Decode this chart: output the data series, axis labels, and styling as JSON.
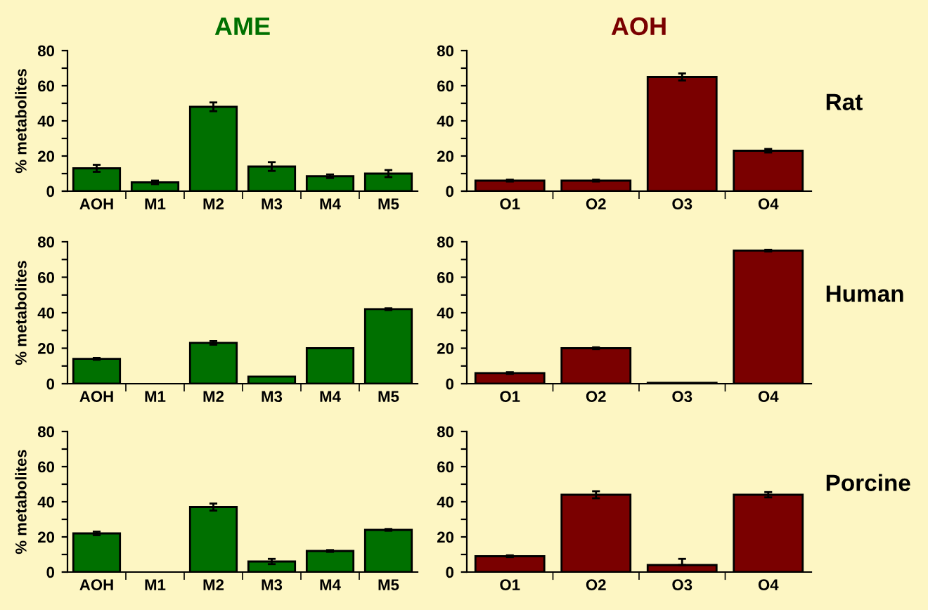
{
  "chart_data": [
    {
      "type": "bar",
      "title": "AME",
      "ylabel": "% metabolites",
      "categories": [
        "AOH",
        "M1",
        "M2",
        "M3",
        "M4",
        "M5"
      ],
      "series": [
        {
          "color": "#007000",
          "values": [
            13,
            5,
            48,
            14,
            8.5,
            10
          ],
          "errors": [
            2,
            1,
            2.5,
            2.5,
            1,
            2
          ]
        }
      ],
      "ylim": [
        0,
        80
      ],
      "yticks": [
        0,
        {
          "value": 10,
          "label": null
        },
        20,
        {
          "value": 30,
          "label": null
        },
        40,
        {
          "value": 50,
          "label": null
        },
        60,
        {
          "value": 70,
          "label": null
        },
        80
      ],
      "grid": false,
      "legend": false
    },
    {
      "type": "bar",
      "title": "AOH",
      "annotations": [
        "Rat"
      ],
      "categories": [
        "O1",
        "O2",
        "O3",
        "O4"
      ],
      "series": [
        {
          "color": "#7a0000",
          "values": [
            6,
            6,
            65,
            23
          ],
          "errors": [
            0.5,
            0.5,
            2,
            1
          ]
        }
      ],
      "ylim": [
        0,
        80
      ],
      "yticks": [
        0,
        {
          "value": 10,
          "label": null
        },
        20,
        {
          "value": 30,
          "label": null
        },
        40,
        {
          "value": 50,
          "label": null
        },
        60,
        {
          "value": 70,
          "label": null
        },
        80
      ],
      "grid": false,
      "legend": false
    },
    {
      "type": "bar",
      "ylabel": "% metabolites",
      "categories": [
        "AOH",
        "M1",
        "M2",
        "M3",
        "M4",
        "M5"
      ],
      "series": [
        {
          "color": "#007000",
          "values": [
            14,
            null,
            23,
            4,
            20,
            42
          ],
          "errors": [
            0.5,
            null,
            1,
            null,
            null,
            0.5
          ]
        }
      ],
      "ylim": [
        0,
        80
      ],
      "yticks": [
        0,
        {
          "value": 10,
          "label": null
        },
        20,
        {
          "value": 30,
          "label": null
        },
        40,
        {
          "value": 50,
          "label": null
        },
        60,
        {
          "value": 70,
          "label": null
        },
        80
      ],
      "grid": false,
      "legend": false
    },
    {
      "type": "bar",
      "annotations": [
        "Human"
      ],
      "categories": [
        "O1",
        "O2",
        "O3",
        "O4"
      ],
      "series": [
        {
          "color": "#7a0000",
          "values": [
            6,
            20,
            0.5,
            75
          ],
          "errors": [
            0.5,
            0.5,
            null,
            0.5
          ]
        }
      ],
      "ylim": [
        0,
        80
      ],
      "yticks": [
        0,
        {
          "value": 10,
          "label": null
        },
        20,
        {
          "value": 30,
          "label": null
        },
        40,
        {
          "value": 50,
          "label": null
        },
        60,
        {
          "value": 70,
          "label": null
        },
        80
      ],
      "grid": false,
      "legend": false
    },
    {
      "type": "bar",
      "ylabel": "% metabolites",
      "categories": [
        "AOH",
        "M1",
        "M2",
        "M3",
        "M4",
        "M5"
      ],
      "series": [
        {
          "color": "#007000",
          "values": [
            22,
            null,
            37,
            6,
            12,
            24
          ],
          "errors": [
            1,
            null,
            2,
            1.5,
            0.5,
            0.5
          ]
        }
      ],
      "ylim": [
        0,
        80
      ],
      "yticks": [
        0,
        {
          "value": 10,
          "label": null
        },
        20,
        {
          "value": 30,
          "label": null
        },
        40,
        {
          "value": 50,
          "label": null
        },
        60,
        {
          "value": 70,
          "label": null
        },
        80
      ],
      "grid": false,
      "legend": false
    },
    {
      "type": "bar",
      "annotations": [
        "Porcine"
      ],
      "categories": [
        "O1",
        "O2",
        "O3",
        "O4"
      ],
      "series": [
        {
          "color": "#7a0000",
          "values": [
            9,
            44,
            4,
            44
          ],
          "errors": [
            0.5,
            2,
            [
              4,
              7.5
            ],
            1.5
          ]
        }
      ],
      "ylim": [
        0,
        80
      ],
      "yticks": [
        0,
        {
          "value": 10,
          "label": null
        },
        20,
        {
          "value": 30,
          "label": null
        },
        40,
        {
          "value": 50,
          "label": null
        },
        60,
        {
          "value": 70,
          "label": null
        },
        80
      ],
      "grid": false,
      "legend": false
    }
  ]
}
